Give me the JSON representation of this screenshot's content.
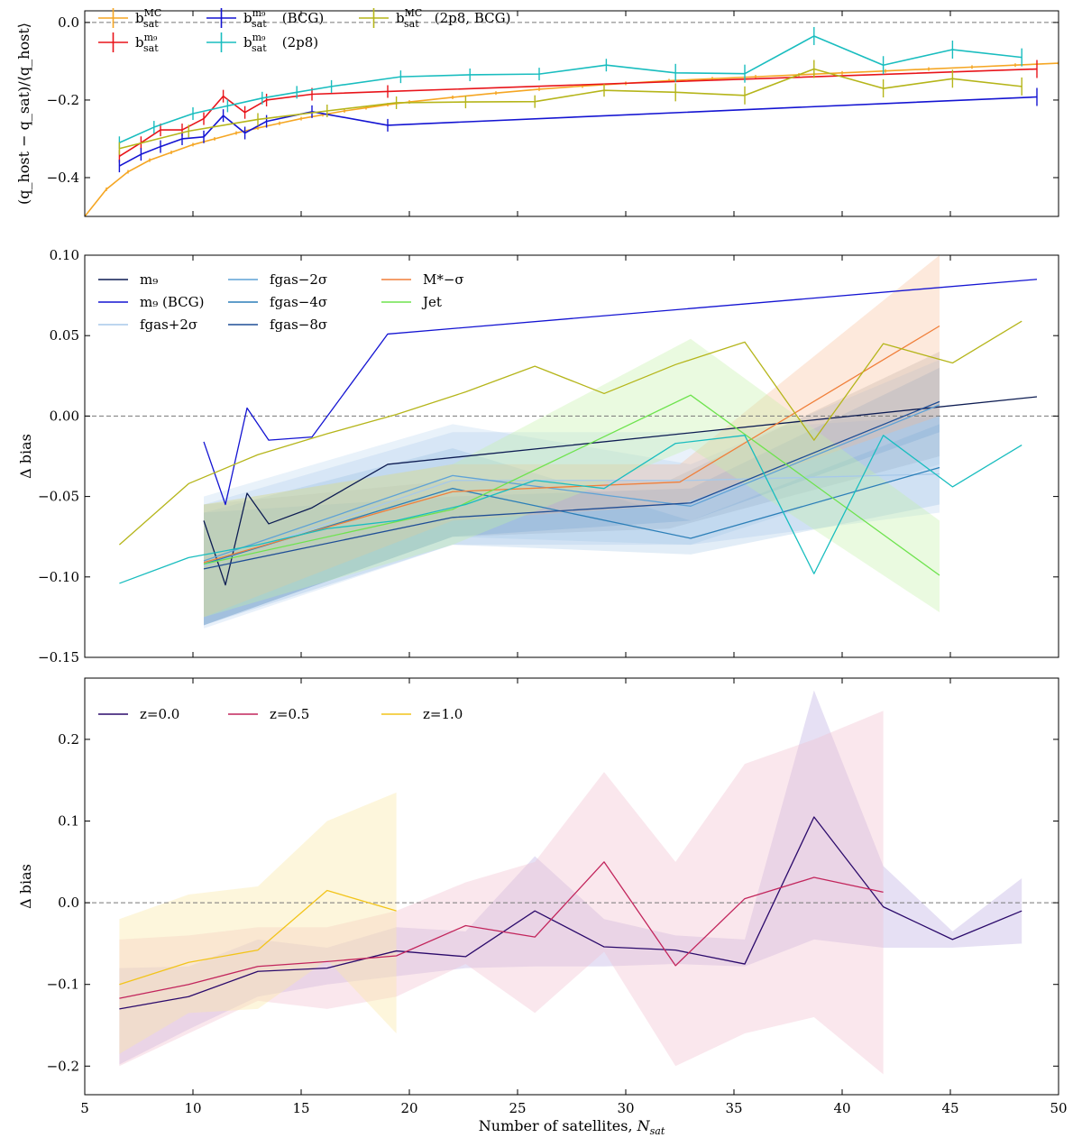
{
  "chart_data": [
    {
      "type": "line",
      "panel": "top",
      "ylabel": "(q_host − q_sat)/⟨q_host⟩",
      "xlabel": "",
      "xlim": [
        5,
        50
      ],
      "ylim": [
        -0.5,
        0.03
      ],
      "yticks": [
        0.0,
        -0.2,
        -0.4
      ],
      "ytick_labels": [
        "0.0",
        "−0.2",
        "−0.4"
      ],
      "reference_line": 0,
      "legend_position": "top-left",
      "legend_columns": 3,
      "series": [
        {
          "name": "b_sat^MC",
          "legend": {
            "base": "b",
            "sup": "MC",
            "sub": "sat",
            "suffix": ""
          },
          "color": "#f5a623",
          "errorbars": true,
          "x": [
            5,
            6,
            7,
            8,
            9,
            10,
            11,
            12,
            13,
            14,
            15,
            16,
            17,
            18,
            19,
            20,
            22,
            24,
            26,
            28,
            30,
            32,
            34,
            36,
            38,
            40,
            42,
            44,
            46,
            48,
            50
          ],
          "y": [
            -0.5,
            -0.43,
            -0.385,
            -0.355,
            -0.335,
            -0.315,
            -0.3,
            -0.285,
            -0.272,
            -0.26,
            -0.248,
            -0.238,
            -0.228,
            -0.22,
            -0.212,
            -0.205,
            -0.193,
            -0.182,
            -0.172,
            -0.164,
            -0.157,
            -0.15,
            -0.145,
            -0.14,
            -0.135,
            -0.13,
            -0.125,
            -0.12,
            -0.115,
            -0.11,
            -0.105
          ]
        },
        {
          "name": "b_sat^m9",
          "legend": {
            "base": "b",
            "sup": "m₉",
            "sub": "sat",
            "suffix": ""
          },
          "color": "#e8141a",
          "errorbars": true,
          "x": [
            6.6,
            7.6,
            8.5,
            9.5,
            10.5,
            11.4,
            12.4,
            13.4,
            15.5,
            19.0,
            49.0
          ],
          "y": [
            -0.345,
            -0.31,
            -0.277,
            -0.277,
            -0.248,
            -0.19,
            -0.232,
            -0.2,
            -0.185,
            -0.178,
            -0.12
          ]
        },
        {
          "name": "b_sat^m9 (BCG)",
          "legend": {
            "base": "b",
            "sup": "m₉",
            "sub": "sat",
            "suffix": " (BCG)"
          },
          "color": "#1414d2",
          "errorbars": true,
          "x": [
            6.6,
            7.6,
            8.5,
            9.5,
            10.5,
            11.4,
            12.4,
            13.4,
            15.5,
            19.0,
            49.0
          ],
          "y": [
            -0.37,
            -0.34,
            -0.32,
            -0.3,
            -0.295,
            -0.24,
            -0.285,
            -0.255,
            -0.23,
            -0.265,
            -0.192
          ]
        },
        {
          "name": "b_sat^m9 (2p8)",
          "legend": {
            "base": "b",
            "sup": "m₉",
            "sub": "sat",
            "suffix": " (2p8)"
          },
          "color": "#19bdbf",
          "errorbars": true,
          "x": [
            6.6,
            8.2,
            10.0,
            11.6,
            13.2,
            14.8,
            16.4,
            19.6,
            22.8,
            26.0,
            29.1,
            32.3,
            35.5,
            38.7,
            41.9,
            45.1,
            48.3
          ],
          "y": [
            -0.31,
            -0.27,
            -0.235,
            -0.215,
            -0.195,
            -0.18,
            -0.165,
            -0.14,
            -0.135,
            -0.133,
            -0.11,
            -0.13,
            -0.132,
            -0.035,
            -0.11,
            -0.07,
            -0.09
          ]
        },
        {
          "name": "b_sat^MC (2p8, BCG)",
          "legend": {
            "base": "b",
            "sup": "MC",
            "sub": "sat",
            "suffix": " (2p8, BCG)"
          },
          "color": "#b5b51a",
          "errorbars": true,
          "x": [
            6.6,
            9.8,
            13.0,
            16.2,
            19.4,
            22.6,
            25.8,
            29.0,
            32.3,
            35.5,
            38.7,
            41.9,
            45.1,
            48.3
          ],
          "y": [
            -0.325,
            -0.28,
            -0.25,
            -0.228,
            -0.207,
            -0.205,
            -0.204,
            -0.175,
            -0.18,
            -0.188,
            -0.12,
            -0.17,
            -0.145,
            -0.165
          ]
        }
      ]
    },
    {
      "type": "line",
      "panel": "middle",
      "ylabel": "Δ bias",
      "xlabel": "",
      "xlim": [
        5,
        50
      ],
      "ylim": [
        -0.15,
        0.1
      ],
      "yticks": [
        -0.15,
        -0.1,
        -0.05,
        0.0,
        0.05,
        0.1
      ],
      "ytick_labels": [
        "−0.15",
        "−0.10",
        "−0.05",
        "0.00",
        "0.05",
        "0.10"
      ],
      "reference_line": 0,
      "legend_position": "top-left",
      "legend_columns": 3,
      "series": [
        {
          "name": "m₉",
          "color": "#0d1c52",
          "legend": true,
          "x": [
            10.5,
            11.5,
            12.5,
            13.5,
            15.5,
            19.0,
            49.0
          ],
          "y": [
            -0.065,
            -0.105,
            -0.048,
            -0.067,
            -0.057,
            -0.03,
            0.012
          ],
          "band": {
            "x": [
              10.5,
              22.0,
              32.0,
              44.5
            ],
            "lower": [
              -0.13,
              -0.075,
              -0.07,
              -0.025
            ],
            "upper": [
              -0.055,
              -0.04,
              -0.04,
              0.04
            ],
            "color": "#888888",
            "opacity": 0.22
          }
        },
        {
          "name": "m₉ (BCG)",
          "color": "#1414d2",
          "legend": true,
          "x": [
            10.5,
            11.5,
            12.5,
            13.5,
            15.5,
            19.0,
            49.0
          ],
          "y": [
            -0.016,
            -0.055,
            0.005,
            -0.015,
            -0.013,
            0.051,
            0.085
          ]
        },
        {
          "name": "fgas+2σ",
          "color": "#a7c9ea",
          "legend": true,
          "x": [
            10.5,
            22.0,
            33.0,
            44.5
          ],
          "y": [
            -0.093,
            -0.04,
            -0.04,
            -0.036
          ],
          "band": {
            "x": [
              10.5,
              22.0,
              33.0,
              44.5
            ],
            "lower": [
              -0.132,
              -0.08,
              -0.08,
              -0.06
            ],
            "upper": [
              -0.055,
              -0.01,
              -0.01,
              0.0
            ],
            "color": "#a7c9ea",
            "opacity": 0.25
          }
        },
        {
          "name": "fgas−2σ",
          "color": "#5fa2d6",
          "legend": true,
          "x": [
            10.5,
            22.0,
            33.0,
            44.5
          ],
          "y": [
            -0.09,
            -0.037,
            -0.056,
            0.007
          ],
          "band": {
            "x": [
              10.5,
              22.0,
              33.0,
              44.5
            ],
            "lower": [
              -0.13,
              -0.075,
              -0.08,
              -0.03
            ],
            "upper": [
              -0.05,
              -0.005,
              -0.03,
              0.035
            ],
            "color": "#8fbce6",
            "opacity": 0.2
          }
        },
        {
          "name": "fgas−4σ",
          "color": "#2c7fb8",
          "legend": true,
          "x": [
            10.5,
            22.0,
            33.0,
            44.5
          ],
          "y": [
            -0.092,
            -0.045,
            -0.076,
            -0.032
          ],
          "band": {
            "x": [
              10.5,
              22.0,
              33.0,
              44.5
            ],
            "lower": [
              -0.13,
              -0.08,
              -0.086,
              -0.055
            ],
            "upper": [
              -0.06,
              -0.02,
              -0.065,
              -0.005
            ],
            "color": "#6fa6d8",
            "opacity": 0.2
          }
        },
        {
          "name": "fgas−8σ",
          "color": "#1f4e96",
          "legend": true,
          "x": [
            10.5,
            22.0,
            33.0,
            44.5
          ],
          "y": [
            -0.095,
            -0.063,
            -0.054,
            0.009
          ],
          "band": {
            "x": [
              10.5,
              22.0,
              33.0,
              44.5
            ],
            "lower": [
              -0.13,
              -0.075,
              -0.065,
              -0.01
            ],
            "upper": [
              -0.06,
              -0.05,
              -0.045,
              0.03
            ],
            "color": "#5a8fcc",
            "opacity": 0.2
          }
        },
        {
          "name": "M*−σ",
          "color": "#f07f3a",
          "legend": true,
          "x": [
            10.5,
            22.0,
            32.5,
            44.5
          ],
          "y": [
            -0.091,
            -0.047,
            -0.041,
            0.056
          ],
          "band": {
            "x": [
              10.5,
              22.0,
              32.5,
              44.5
            ],
            "lower": [
              -0.125,
              -0.065,
              -0.055,
              0.0
            ],
            "upper": [
              -0.055,
              -0.03,
              -0.03,
              0.1
            ],
            "color": "#f8b58a",
            "opacity": 0.3
          }
        },
        {
          "name": "Jet",
          "color": "#6ee34e",
          "legend": true,
          "x": [
            10.5,
            22.0,
            33.0,
            44.5
          ],
          "y": [
            -0.092,
            -0.058,
            0.013,
            -0.099
          ],
          "band": {
            "x": [
              10.5,
              22.0,
              33.0,
              44.5
            ],
            "lower": [
              -0.125,
              -0.08,
              -0.02,
              -0.122
            ],
            "upper": [
              -0.055,
              -0.03,
              0.048,
              -0.065
            ],
            "color": "#c3f0a6",
            "opacity": 0.35
          }
        },
        {
          "name": "2p8",
          "color": "#19bdbf",
          "legend": false,
          "x": [
            6.6,
            9.8,
            13.0,
            16.2,
            19.4,
            22.6,
            25.8,
            29.0,
            32.3,
            35.5,
            38.7,
            41.9,
            45.1,
            48.3
          ],
          "y": [
            -0.104,
            -0.088,
            -0.08,
            -0.07,
            -0.065,
            -0.055,
            -0.04,
            -0.045,
            -0.017,
            -0.012,
            -0.098,
            -0.012,
            -0.044,
            -0.018
          ]
        },
        {
          "name": "2p8, BCG",
          "color": "#b5b51a",
          "legend": false,
          "x": [
            6.6,
            9.8,
            13.0,
            16.2,
            19.4,
            22.6,
            25.8,
            29.0,
            32.3,
            35.5,
            38.7,
            41.9,
            45.1,
            48.3
          ],
          "y": [
            -0.08,
            -0.042,
            -0.024,
            -0.011,
            0.001,
            0.015,
            0.031,
            0.014,
            0.032,
            0.046,
            -0.015,
            0.045,
            0.033,
            0.059
          ]
        }
      ]
    },
    {
      "type": "line",
      "panel": "bottom",
      "ylabel": "Δ bias",
      "xlabel": "Number of satellites, N_sat",
      "xlabel_main": "Number of satellites, ",
      "xlabel_symbol": "N",
      "xlabel_sub": "sat",
      "xlim": [
        5,
        50
      ],
      "ylim": [
        -0.235,
        0.275
      ],
      "xticks": [
        5,
        10,
        15,
        20,
        25,
        30,
        35,
        40,
        45,
        50
      ],
      "xtick_labels": [
        "5",
        "10",
        "15",
        "20",
        "25",
        "30",
        "35",
        "40",
        "45",
        "50"
      ],
      "yticks": [
        -0.2,
        -0.1,
        0.0,
        0.1,
        0.2
      ],
      "ytick_labels": [
        "−0.2",
        "−0.1",
        "0.0",
        "0.1",
        "0.2"
      ],
      "reference_line": 0,
      "legend_position": "top-left",
      "legend_columns": 3,
      "series": [
        {
          "name": "z=0.0",
          "color": "#2b0a6b",
          "legend": true,
          "x": [
            6.6,
            9.8,
            13.0,
            16.2,
            19.4,
            22.6,
            25.8,
            29.0,
            32.3,
            35.5,
            38.7,
            41.9,
            45.1,
            48.3
          ],
          "y": [
            -0.13,
            -0.115,
            -0.084,
            -0.08,
            -0.059,
            -0.066,
            -0.01,
            -0.054,
            -0.058,
            -0.075,
            0.105,
            -0.005,
            -0.045,
            -0.01
          ],
          "band": {
            "x": [
              6.6,
              9.8,
              13.0,
              16.2,
              19.4,
              22.6,
              25.8,
              29.0,
              32.3,
              35.5,
              38.7,
              41.9,
              45.1,
              48.3
            ],
            "lower": [
              -0.198,
              -0.155,
              -0.115,
              -0.1,
              -0.09,
              -0.08,
              -0.078,
              -0.078,
              -0.075,
              -0.078,
              -0.045,
              -0.055,
              -0.055,
              -0.05
            ],
            "upper": [
              -0.08,
              -0.078,
              -0.045,
              -0.055,
              -0.03,
              -0.035,
              0.057,
              -0.02,
              -0.04,
              -0.045,
              0.26,
              0.045,
              -0.035,
              0.03
            ],
            "color": "#b7a6e0",
            "opacity": 0.35
          }
        },
        {
          "name": "z=0.5",
          "color": "#c2255c",
          "legend": true,
          "x": [
            6.6,
            9.8,
            13.0,
            16.2,
            19.4,
            22.6,
            25.8,
            29.0,
            32.3,
            35.5,
            38.7,
            41.9
          ],
          "y": [
            -0.117,
            -0.1,
            -0.078,
            -0.072,
            -0.065,
            -0.028,
            -0.042,
            0.05,
            -0.077,
            0.005,
            0.031,
            0.013
          ],
          "band": {
            "x": [
              6.6,
              9.8,
              13.0,
              16.2,
              19.4,
              22.6,
              25.8,
              29.0,
              32.3,
              35.5,
              38.7,
              41.9
            ],
            "lower": [
              -0.2,
              -0.16,
              -0.12,
              -0.13,
              -0.115,
              -0.075,
              -0.135,
              -0.06,
              -0.2,
              -0.16,
              -0.14,
              -0.21
            ],
            "upper": [
              -0.045,
              -0.04,
              -0.03,
              -0.03,
              -0.01,
              0.025,
              0.05,
              0.16,
              0.05,
              0.17,
              0.2,
              0.235
            ],
            "color": "#f3bfcf",
            "opacity": 0.38
          }
        },
        {
          "name": "z=1.0",
          "color": "#f2c41a",
          "legend": true,
          "x": [
            6.6,
            9.8,
            13.0,
            16.2,
            19.4
          ],
          "y": [
            -0.1,
            -0.073,
            -0.058,
            0.015,
            -0.01
          ],
          "band": {
            "x": [
              6.6,
              9.8,
              13.0,
              16.2,
              19.4
            ],
            "lower": [
              -0.185,
              -0.135,
              -0.13,
              -0.07,
              -0.16
            ],
            "upper": [
              -0.02,
              0.01,
              0.02,
              0.1,
              0.135
            ],
            "color": "#fbe9a8",
            "opacity": 0.4
          }
        }
      ]
    }
  ]
}
